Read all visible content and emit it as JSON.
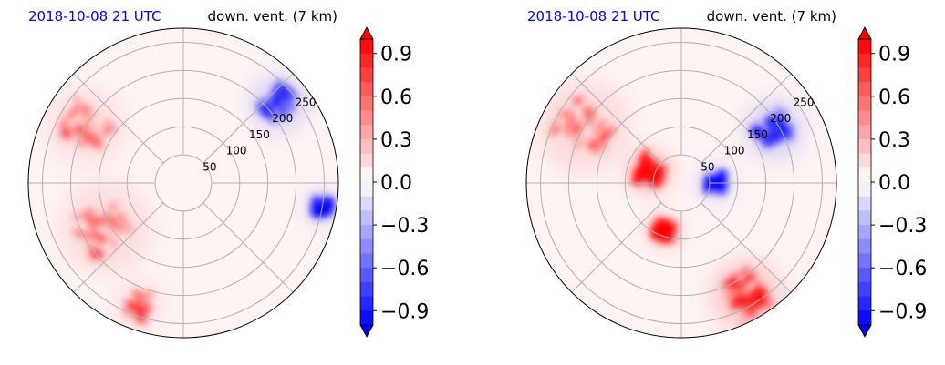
{
  "chart_data": [
    {
      "type": "polar-contour",
      "title_left": "2018-10-08 21 UTC",
      "title_right": "down. vent. (7 km)",
      "radial_ticks": [
        "50",
        "100",
        "150",
        "200",
        "250"
      ],
      "colorbar": {
        "ticks": [
          "0.9",
          "0.6",
          "0.3",
          "0.0",
          "−0.3",
          "−0.6",
          "−0.9"
        ],
        "range": [
          -1.0,
          1.0
        ],
        "extend": "both",
        "cmap": "bwr"
      },
      "features": [
        {
          "kind": "warm",
          "angle_deg": 210,
          "radius": 160,
          "spread": 70,
          "strength": 0.45
        },
        {
          "kind": "warm",
          "angle_deg": 150,
          "radius": 200,
          "spread": 60,
          "strength": 0.4
        },
        {
          "kind": "warm",
          "angle_deg": 250,
          "radius": 230,
          "spread": 40,
          "strength": 0.35
        },
        {
          "kind": "cool",
          "angle_deg": 40,
          "radius": 220,
          "spread": 45,
          "strength": 0.6
        },
        {
          "kind": "cool",
          "angle_deg": -10,
          "radius": 250,
          "spread": 25,
          "strength": 0.7
        }
      ]
    },
    {
      "type": "polar-contour",
      "title_left": "2018-10-08 21 UTC",
      "title_right": "down. vent. (7 km)",
      "radial_ticks": [
        "50",
        "100",
        "150",
        "200",
        "250"
      ],
      "colorbar": {
        "ticks": [
          "0.9",
          "0.6",
          "0.3",
          "0.0",
          "−0.3",
          "−0.6",
          "−0.9"
        ],
        "range": [
          -1.0,
          1.0
        ],
        "extend": "both",
        "cmap": "bwr"
      },
      "features": [
        {
          "kind": "warm",
          "angle_deg": 160,
          "radius": 60,
          "spread": 35,
          "strength": 1.0
        },
        {
          "kind": "warm",
          "angle_deg": 250,
          "radius": 90,
          "spread": 25,
          "strength": 1.0
        },
        {
          "kind": "warm",
          "angle_deg": 150,
          "radius": 200,
          "spread": 70,
          "strength": 0.5
        },
        {
          "kind": "warm",
          "angle_deg": -60,
          "radius": 230,
          "spread": 55,
          "strength": 0.8
        },
        {
          "kind": "cool",
          "angle_deg": 30,
          "radius": 190,
          "spread": 45,
          "strength": 0.7
        },
        {
          "kind": "cool",
          "angle_deg": 0,
          "radius": 60,
          "spread": 25,
          "strength": 0.8
        }
      ]
    }
  ],
  "colors": {
    "title_left": "#0000ff",
    "title_right": "#000000",
    "neg": "#0000ff",
    "pos": "#ff0000",
    "grid": "#b0b0b0"
  }
}
